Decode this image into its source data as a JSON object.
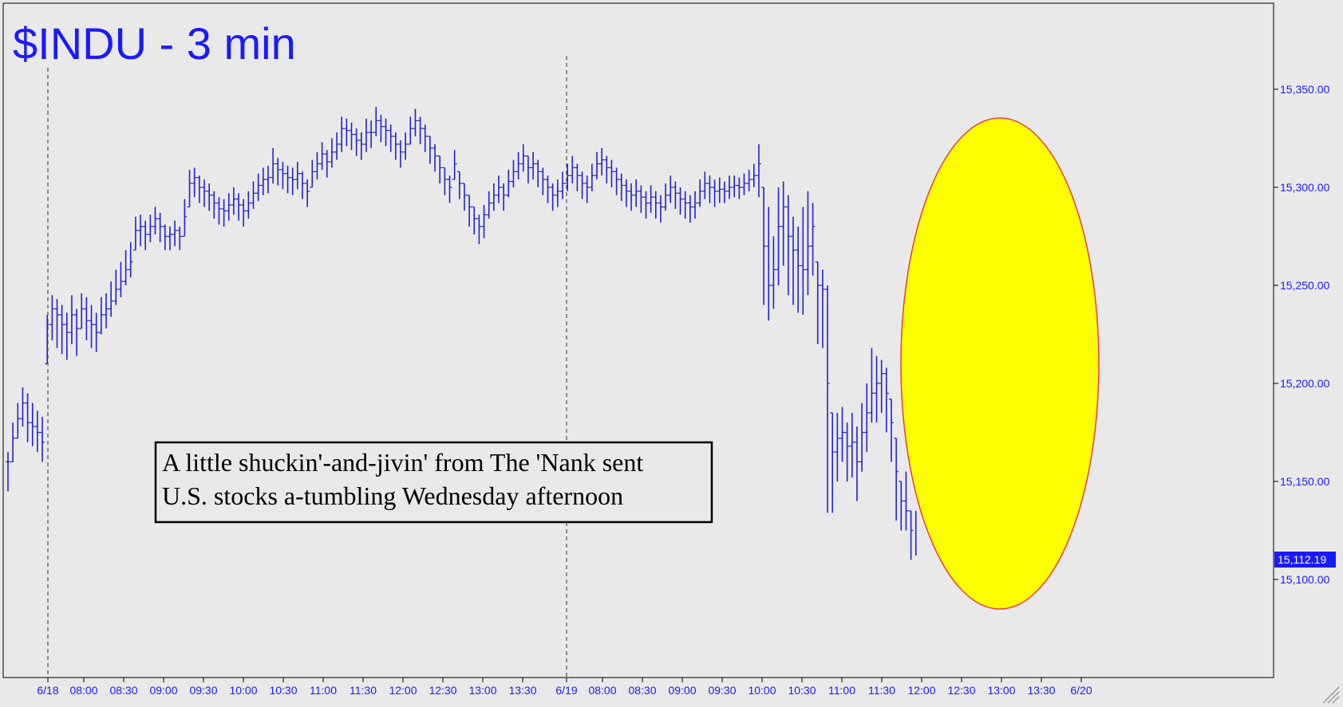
{
  "chart_data": {
    "type": "ohlc",
    "title": "$INDU - 3 min",
    "annotation": [
      "A little shuckin'-and-jivin' from The 'Nank sent",
      "U.S. stocks a-tumbling Wednesday afternoon"
    ],
    "ylim": [
      15060,
      15390
    ],
    "y_ticks": [
      15100,
      15150,
      15200,
      15250,
      15300,
      15350
    ],
    "y_tick_labels": [
      "15,100.00",
      "15,150.00",
      "15,200.00",
      "15,250.00",
      "15,300.00",
      "15,350.00"
    ],
    "last_price": 15112.19,
    "last_price_label": "15,112.19",
    "x_tick_labels": [
      "6/18",
      "08:00",
      "08:30",
      "09:00",
      "09:30",
      "10:00",
      "10:30",
      "11:00",
      "11:30",
      "12:00",
      "12:30",
      "13:00",
      "13:30",
      "6/19",
      "08:00",
      "08:30",
      "09:00",
      "09:30",
      "10:00",
      "10:30",
      "11:00",
      "11:30",
      "12:00",
      "12:30",
      "13:00",
      "13:30",
      "6/20"
    ],
    "session_breaks": [
      "6/18",
      "6/19"
    ],
    "highlight": "ellipse around the 6/19 afternoon sell-off",
    "grid": false,
    "colors": {
      "bars": "#2222cc",
      "title": "#1a1aff",
      "background": "#e9e9e9",
      "highlight_fill": "#ffff00",
      "highlight_stroke": "#e8403a",
      "price_tag": "#1a1aff"
    },
    "bars": [
      [
        15160,
        15145,
        15165
      ],
      [
        15172,
        15160,
        15180
      ],
      [
        15182,
        15172,
        15190
      ],
      [
        15190,
        15178,
        15198
      ],
      [
        15180,
        15170,
        15195
      ],
      [
        15178,
        15168,
        15190
      ],
      [
        15175,
        15165,
        15186
      ],
      [
        15170,
        15160,
        15183
      ],
      [
        15230,
        15210,
        15235
      ],
      [
        15238,
        15222,
        15245
      ],
      [
        15235,
        15218,
        15243
      ],
      [
        15230,
        15215,
        15240
      ],
      [
        15226,
        15212,
        15236
      ],
      [
        15235,
        15220,
        15245
      ],
      [
        15228,
        15214,
        15238
      ],
      [
        15238,
        15228,
        15246
      ],
      [
        15232,
        15222,
        15244
      ],
      [
        15230,
        15218,
        15240
      ],
      [
        15226,
        15216,
        15236
      ],
      [
        15235,
        15225,
        15244
      ],
      [
        15238,
        15228,
        15246
      ],
      [
        15242,
        15234,
        15252
      ],
      [
        15248,
        15240,
        15258
      ],
      [
        15252,
        15244,
        15262
      ],
      [
        15258,
        15250,
        15268
      ],
      [
        15262,
        15254,
        15272
      ],
      [
        15278,
        15268,
        15285
      ],
      [
        15280,
        15270,
        15286
      ],
      [
        15276,
        15268,
        15283
      ],
      [
        15280,
        15272,
        15286
      ],
      [
        15284,
        15276,
        15290
      ],
      [
        15280,
        15272,
        15287
      ],
      [
        15275,
        15268,
        15281
      ],
      [
        15276,
        15268,
        15280
      ],
      [
        15278,
        15270,
        15283
      ],
      [
        15275,
        15268,
        15280
      ],
      [
        15285,
        15275,
        15294
      ],
      [
        15302,
        15290,
        15309
      ],
      [
        15305,
        15295,
        15310
      ],
      [
        15300,
        15292,
        15306
      ],
      [
        15298,
        15290,
        15304
      ],
      [
        15296,
        15288,
        15302
      ],
      [
        15292,
        15284,
        15298
      ],
      [
        15289,
        15281,
        15295
      ],
      [
        15288,
        15280,
        15294
      ],
      [
        15291,
        15283,
        15297
      ],
      [
        15294,
        15286,
        15300
      ],
      [
        15291,
        15283,
        15297
      ],
      [
        15288,
        15280,
        15294
      ],
      [
        15292,
        15284,
        15298
      ],
      [
        15297,
        15289,
        15303
      ],
      [
        15301,
        15293,
        15307
      ],
      [
        15304,
        15296,
        15310
      ],
      [
        15305,
        15297,
        15311
      ],
      [
        15312,
        15302,
        15320
      ],
      [
        15309,
        15301,
        15315
      ],
      [
        15307,
        15299,
        15313
      ],
      [
        15305,
        15297,
        15311
      ],
      [
        15304,
        15296,
        15310
      ],
      [
        15307,
        15299,
        15313
      ],
      [
        15302,
        15294,
        15308
      ],
      [
        15298,
        15290,
        15304
      ],
      [
        15308,
        15300,
        15314
      ],
      [
        15312,
        15304,
        15318
      ],
      [
        15317,
        15309,
        15323
      ],
      [
        15313,
        15305,
        15319
      ],
      [
        15318,
        15310,
        15325
      ],
      [
        15322,
        15314,
        15328
      ],
      [
        15330,
        15318,
        15336
      ],
      [
        15329,
        15321,
        15335
      ],
      [
        15327,
        15319,
        15333
      ],
      [
        15324,
        15316,
        15330
      ],
      [
        15322,
        15314,
        15328
      ],
      [
        15328,
        15318,
        15335
      ],
      [
        15328,
        15320,
        15334
      ],
      [
        15334,
        15326,
        15341
      ],
      [
        15331,
        15323,
        15337
      ],
      [
        15329,
        15321,
        15335
      ],
      [
        15326,
        15318,
        15332
      ],
      [
        15322,
        15314,
        15328
      ],
      [
        15318,
        15310,
        15324
      ],
      [
        15322,
        15314,
        15328
      ],
      [
        15330,
        15322,
        15336
      ],
      [
        15334,
        15326,
        15340
      ],
      [
        15330,
        15322,
        15336
      ],
      [
        15326,
        15318,
        15332
      ],
      [
        15320,
        15312,
        15326
      ],
      [
        15316,
        15308,
        15322
      ],
      [
        15310,
        15302,
        15316
      ],
      [
        15304,
        15296,
        15310
      ],
      [
        15300,
        15292,
        15306
      ],
      [
        15312,
        15304,
        15319
      ],
      [
        15302,
        15294,
        15308
      ],
      [
        15296,
        15288,
        15302
      ],
      [
        15290,
        15280,
        15296
      ],
      [
        15284,
        15276,
        15290
      ],
      [
        15280,
        15271,
        15286
      ],
      [
        15286,
        15274,
        15291
      ],
      [
        15292,
        15284,
        15298
      ],
      [
        15296,
        15288,
        15302
      ],
      [
        15300,
        15292,
        15306
      ],
      [
        15296,
        15288,
        15302
      ],
      [
        15303,
        15295,
        15309
      ],
      [
        15308,
        15300,
        15314
      ],
      [
        15312,
        15304,
        15318
      ],
      [
        15316,
        15308,
        15322
      ],
      [
        15310,
        15302,
        15316
      ],
      [
        15312,
        15304,
        15318
      ],
      [
        15308,
        15300,
        15314
      ],
      [
        15304,
        15296,
        15310
      ],
      [
        15300,
        15292,
        15306
      ],
      [
        15296,
        15288,
        15302
      ],
      [
        15298,
        15290,
        15304
      ],
      [
        15302,
        15294,
        15308
      ],
      [
        15306,
        15298,
        15312
      ],
      [
        15310,
        15302,
        15316
      ],
      [
        15306,
        15298,
        15312
      ],
      [
        15302,
        15294,
        15308
      ],
      [
        15300,
        15292,
        15306
      ],
      [
        15306,
        15298,
        15312
      ],
      [
        15312,
        15304,
        15318
      ],
      [
        15314,
        15306,
        15320
      ],
      [
        15310,
        15302,
        15316
      ],
      [
        15308,
        15300,
        15314
      ],
      [
        15304,
        15296,
        15310
      ],
      [
        15301,
        15293,
        15307
      ],
      [
        15298,
        15290,
        15304
      ],
      [
        15296,
        15288,
        15302
      ],
      [
        15298,
        15290,
        15304
      ],
      [
        15295,
        15287,
        15301
      ],
      [
        15292,
        15284,
        15298
      ],
      [
        15295,
        15287,
        15301
      ],
      [
        15292,
        15284,
        15298
      ],
      [
        15290,
        15282,
        15296
      ],
      [
        15296,
        15288,
        15302
      ],
      [
        15300,
        15292,
        15306
      ],
      [
        15297,
        15289,
        15303
      ],
      [
        15294,
        15286,
        15300
      ],
      [
        15292,
        15284,
        15298
      ],
      [
        15290,
        15282,
        15296
      ],
      [
        15292,
        15284,
        15298
      ],
      [
        15298,
        15290,
        15304
      ],
      [
        15302,
        15294,
        15308
      ],
      [
        15300,
        15292,
        15306
      ],
      [
        15298,
        15290,
        15304
      ],
      [
        15299,
        15292,
        15305
      ],
      [
        15298,
        15292,
        15303
      ],
      [
        15300,
        15294,
        15306
      ],
      [
        15301,
        15295,
        15306
      ],
      [
        15300,
        15294,
        15305
      ],
      [
        15302,
        15296,
        15307
      ],
      [
        15304,
        15298,
        15309
      ],
      [
        15306,
        15300,
        15312
      ],
      [
        15312,
        15295,
        15322
      ],
      [
        15270,
        15240,
        15300
      ],
      [
        15250,
        15232,
        15290
      ],
      [
        15258,
        15238,
        15275
      ],
      [
        15280,
        15250,
        15300
      ],
      [
        15290,
        15260,
        15303
      ],
      [
        15275,
        15245,
        15296
      ],
      [
        15268,
        15240,
        15285
      ],
      [
        15260,
        15236,
        15280
      ],
      [
        15258,
        15235,
        15290
      ],
      [
        15270,
        15245,
        15298
      ],
      [
        15280,
        15255,
        15292
      ],
      [
        15250,
        15220,
        15262
      ],
      [
        15248,
        15218,
        15258
      ],
      [
        15200,
        15134,
        15250
      ],
      [
        15165,
        15134,
        15185
      ],
      [
        15172,
        15150,
        15185
      ],
      [
        15175,
        15160,
        15188
      ],
      [
        15168,
        15150,
        15180
      ],
      [
        15170,
        15152,
        15185
      ],
      [
        15160,
        15140,
        15178
      ],
      [
        15175,
        15155,
        15190
      ],
      [
        15185,
        15165,
        15200
      ],
      [
        15195,
        15180,
        15218
      ],
      [
        15200,
        15180,
        15214
      ],
      [
        15205,
        15185,
        15212
      ],
      [
        15195,
        15175,
        15208
      ],
      [
        15180,
        15160,
        15192
      ],
      [
        15155,
        15130,
        15172
      ],
      [
        15140,
        15125,
        15150
      ],
      [
        15135,
        15125,
        15155
      ],
      [
        15125,
        15110,
        15135
      ]
    ]
  }
}
